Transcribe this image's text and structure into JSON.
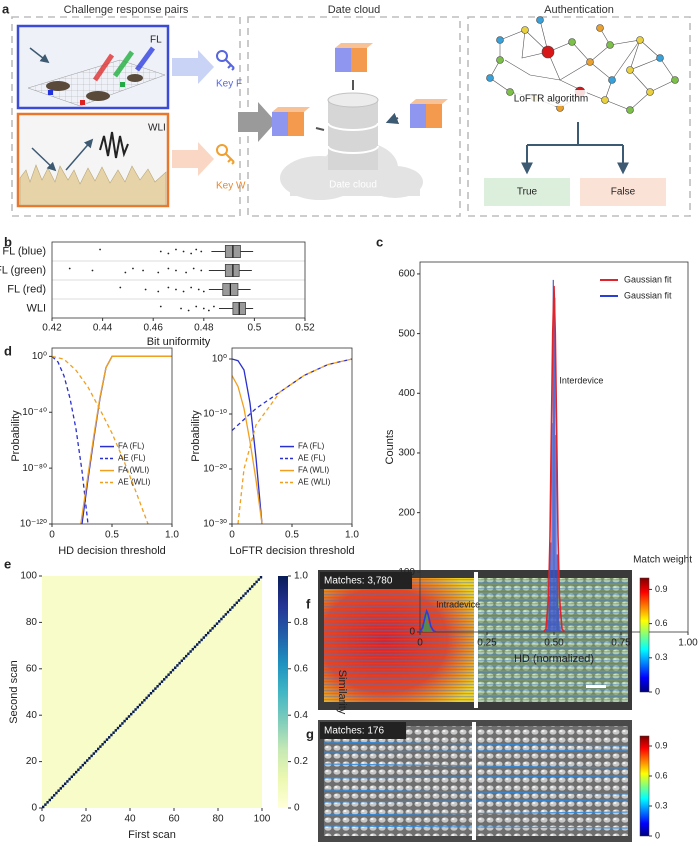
{
  "panel_labels": [
    "a",
    "b",
    "c",
    "d",
    "e",
    "f",
    "g"
  ],
  "diagram": {
    "sections": [
      "Challenge response pairs",
      "Date cloud",
      "Authentication"
    ],
    "fl_label": "FL",
    "wli_label": "WLI",
    "key_f": "Key F",
    "key_w": "Key W",
    "cloud_label": "Date cloud",
    "algorithm": "LoFTR algorithm",
    "outcomes": [
      "True",
      "False"
    ]
  },
  "chart_data": [
    {
      "type": "box",
      "x_label": "Bit uniformity",
      "categories": [
        "FL (blue)",
        "FL (green)",
        "FL (red)",
        "WLI"
      ],
      "boxes": [
        {
          "low": 0.483,
          "q1": 0.4885,
          "median": 0.4915,
          "q3": 0.4945,
          "high": 0.4995,
          "outliers": [
            0.439,
            0.463,
            0.466,
            0.469,
            0.472,
            0.475,
            0.477,
            0.479
          ]
        },
        {
          "low": 0.482,
          "q1": 0.4885,
          "median": 0.4915,
          "q3": 0.494,
          "high": 0.499,
          "outliers": [
            0.427,
            0.436,
            0.449,
            0.452,
            0.456,
            0.462,
            0.466,
            0.469,
            0.473,
            0.476,
            0.479
          ]
        },
        {
          "low": 0.482,
          "q1": 0.4875,
          "median": 0.4905,
          "q3": 0.4935,
          "high": 0.4985,
          "outliers": [
            0.447,
            0.457,
            0.462,
            0.466,
            0.469,
            0.472,
            0.475,
            0.478,
            0.48
          ]
        },
        {
          "low": 0.486,
          "q1": 0.4915,
          "median": 0.494,
          "q3": 0.4965,
          "high": 0.4995,
          "outliers": [
            0.463,
            0.471,
            0.474,
            0.477,
            0.48,
            0.482,
            0.484
          ]
        }
      ],
      "color": "#9a9a9a",
      "xlim": [
        0.42,
        0.52
      ],
      "xticks": [
        0.42,
        0.44,
        0.46,
        0.48,
        0.5,
        0.52
      ]
    },
    {
      "type": "histogram",
      "x_label": "HD (normalized)",
      "y_label": "Counts",
      "bars": [
        {
          "color": "#3c9a50",
          "bins": [
            0.01,
            0.015,
            0.02,
            0.025,
            0.03,
            0.035,
            0.04,
            0.045,
            0.05
          ],
          "counts": [
            5,
            30,
            35,
            28,
            15,
            6,
            2,
            1
          ]
        },
        {
          "color": "#3d56c8",
          "bins": [
            0.47,
            0.475,
            0.48,
            0.485,
            0.49,
            0.495,
            0.5,
            0.505,
            0.51,
            0.515,
            0.52,
            0.525,
            0.53
          ],
          "counts": [
            5,
            20,
            60,
            150,
            350,
            590,
            560,
            330,
            130,
            40,
            10,
            2
          ]
        }
      ],
      "series": [
        {
          "name": "Gaussian fit",
          "color": "#e0242b",
          "x": [
            0.46,
            0.47,
            0.48,
            0.485,
            0.49,
            0.495,
            0.5,
            0.505,
            0.51,
            0.515,
            0.52,
            0.53,
            0.54
          ],
          "values": [
            0,
            5,
            60,
            160,
            330,
            500,
            580,
            500,
            330,
            160,
            60,
            5,
            0
          ]
        },
        {
          "name": "Gaussian fit",
          "color": "#2a3fd6",
          "x": [
            0,
            0.01,
            0.02,
            0.025,
            0.03,
            0.035,
            0.04,
            0.05,
            0.06
          ],
          "values": [
            0,
            8,
            28,
            35,
            30,
            20,
            10,
            2,
            0
          ]
        }
      ],
      "annotations": [
        "Interdevice",
        "Intradevice"
      ],
      "xlim": [
        0,
        1
      ],
      "xticks": [
        0,
        0.25,
        {
          "value": 0.5,
          "label": "0.50"
        },
        0.75,
        {
          "value": 1,
          "label": "1.00"
        }
      ],
      "ylim": [
        0,
        620
      ],
      "yticks": [
        0,
        100,
        200,
        300,
        400,
        500,
        600
      ]
    },
    {
      "type": "line",
      "x_label": "HD decision threshold",
      "y_label": "Probability",
      "log_y": true,
      "series": [
        {
          "name": "FA (FL)",
          "color": "#2a2fd0",
          "dash": false,
          "x": [
            0.25,
            0.3,
            0.35,
            0.4,
            0.45,
            0.5,
            1
          ],
          "values": [
            1e-120,
            1e-88,
            1e-58,
            1e-30,
            1e-08,
            1,
            1
          ]
        },
        {
          "name": "AE (FL)",
          "color": "#2a2fd0",
          "dash": true,
          "x": [
            0,
            0.05,
            0.1,
            0.15,
            0.2,
            0.25,
            0.3
          ],
          "values": [
            1,
            0.0001,
            1e-14,
            1e-30,
            1e-52,
            1e-82,
            1e-120
          ]
        },
        {
          "name": "FA (WLI)",
          "color": "#f0a020",
          "dash": false,
          "x": [
            0.24,
            0.3,
            0.35,
            0.4,
            0.45,
            0.5,
            1
          ],
          "values": [
            1e-120,
            1e-85,
            1e-56,
            1e-29,
            1e-08,
            1,
            1
          ]
        },
        {
          "name": "AE (WLI)",
          "color": "#f0a020",
          "dash": true,
          "x": [
            0,
            0.1,
            0.2,
            0.3,
            0.4,
            0.5,
            0.6,
            0.7,
            0.8
          ],
          "values": [
            1,
            0.01,
            1e-10,
            1e-22,
            1e-38,
            1e-55,
            1e-75,
            1e-97,
            1e-120
          ]
        }
      ],
      "xlim": [
        0,
        1
      ],
      "xticks": [
        0,
        0.5,
        {
          "value": 1,
          "label": "1.0"
        }
      ],
      "ylim": [
        1e-120,
        1000000.0
      ],
      "yticks": [
        {
          "value": 1,
          "label": "10⁰"
        },
        {
          "value": 1e-40,
          "label": "10⁻⁴⁰"
        },
        {
          "value": 1e-80,
          "label": "10⁻⁸⁰"
        },
        {
          "value": 1e-120,
          "label": "10⁻¹²⁰"
        }
      ]
    },
    {
      "type": "line",
      "x_label": "LoFTR decision threshold",
      "y_label": "Probability",
      "log_y": true,
      "series": [
        {
          "name": "FA (FL)",
          "color": "#2a2fd0",
          "dash": false,
          "x": [
            0,
            0.05,
            0.1,
            0.15,
            0.2,
            0.25
          ],
          "values": [
            1,
            0.5,
            0.01,
            1e-08,
            1e-18,
            1e-30
          ]
        },
        {
          "name": "AE (FL)",
          "color": "#2a2fd0",
          "dash": true,
          "x": [
            0,
            0.2,
            0.4,
            0.6,
            0.8,
            1
          ],
          "values": [
            1e-13,
            1e-09,
            1e-06,
            0.001,
            0.1,
            1
          ]
        },
        {
          "name": "FA (WLI)",
          "color": "#f0a020",
          "dash": false,
          "x": [
            0,
            0.05,
            0.1,
            0.15,
            0.2,
            0.25
          ],
          "values": [
            0.001,
            1e-05,
            1e-09,
            1e-15,
            1e-22,
            1e-30
          ]
        },
        {
          "name": "AE (WLI)",
          "color": "#f0a020",
          "dash": true,
          "x": [
            0.05,
            0.1,
            0.2,
            0.4,
            0.6,
            0.8,
            1
          ],
          "values": [
            1e-30,
            1e-20,
            1e-12,
            1e-06,
            0.001,
            0.1,
            1
          ]
        }
      ],
      "xlim": [
        0,
        1
      ],
      "xticks": [
        0,
        0.5,
        {
          "value": 1,
          "label": "1.0"
        }
      ],
      "ylim": [
        1e-30,
        100
      ],
      "yticks": [
        {
          "value": 1,
          "label": "10⁰"
        },
        {
          "value": 1e-10,
          "label": "10⁻¹⁰"
        },
        {
          "value": 1e-20,
          "label": "10⁻²⁰"
        },
        {
          "value": 1e-30,
          "label": "10⁻³⁰"
        }
      ]
    },
    {
      "type": "heatmap",
      "x_label": "First scan",
      "y_label": "Second scan",
      "diagonal": 1,
      "off_diagonal": 0.05,
      "xlim": [
        0,
        100
      ],
      "xticks": [
        0,
        20,
        40,
        60,
        80,
        100
      ],
      "ylim": [
        0,
        100
      ],
      "yticks": [
        0,
        20,
        40,
        60,
        80,
        100
      ],
      "colorbar": {
        "label": "Similarity",
        "lim": [
          0,
          1
        ],
        "ticks": [
          0,
          0.2,
          0.4,
          0.6,
          0.8,
          {
            "value": 1,
            "label": "1.0"
          }
        ],
        "colors": [
          "#ffffd9",
          "#edf8b1",
          "#c7e9b4",
          "#7fcdbb",
          "#41b6c4",
          "#1d91c0",
          "#225ea8",
          "#253494",
          "#081d58"
        ]
      }
    }
  ],
  "images": [
    {
      "title": "Match weight",
      "matches": "Matches: 3,780",
      "clim": [
        0,
        1
      ],
      "ticks": [
        0,
        0.3,
        0.6,
        0.9
      ]
    },
    {
      "matches": "Matches: 176",
      "clim": [
        0,
        1
      ],
      "ticks": [
        0,
        0.3,
        0.6,
        0.9
      ]
    }
  ],
  "colormap": [
    "#00007f",
    "#0000ff",
    "#007fff",
    "#00ffff",
    "#7fff7f",
    "#ffff00",
    "#ff7f00",
    "#ff0000",
    "#7f0000"
  ]
}
